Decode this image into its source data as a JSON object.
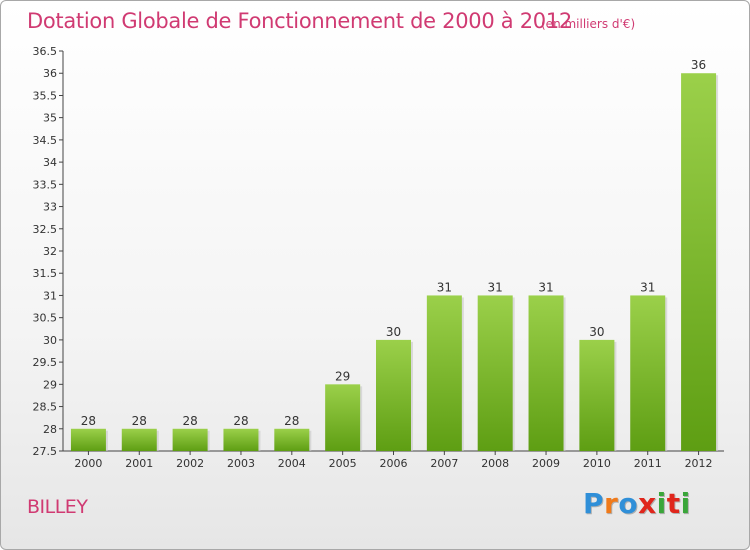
{
  "header": {
    "title": "Dotation Globale de Fonctionnement de 2000 à 2012",
    "unit": "(en milliers d'€)"
  },
  "footer": {
    "commune": "BILLEY",
    "logo_text": "Proxiti",
    "logo_colors": [
      "#2f8fd8",
      "#f07a1a",
      "#2f8fd8",
      "#e0261c",
      "#3aa63a",
      "#e0261c",
      "#3aa63a"
    ]
  },
  "colors": {
    "bar_top": "#9bd04a",
    "bar_bottom": "#5e9e13",
    "title": "#d03a72"
  },
  "chart_data": {
    "type": "bar",
    "title": "Dotation Globale de Fonctionnement de 2000 à 2012",
    "subtitle": "(en milliers d'€)",
    "xlabel": "",
    "ylabel": "",
    "categories": [
      "2000",
      "2001",
      "2002",
      "2003",
      "2004",
      "2005",
      "2006",
      "2007",
      "2008",
      "2009",
      "2010",
      "2011",
      "2012"
    ],
    "values": [
      28,
      28,
      28,
      28,
      28,
      29,
      30,
      31,
      31,
      31,
      30,
      31,
      36
    ],
    "ylim": [
      27.5,
      36.5
    ],
    "ytick_step": 0.5,
    "ytick_labels": [
      "27.5",
      "28",
      "28.5",
      "29",
      "29.5",
      "30",
      "30.5",
      "31",
      "31.5",
      "32",
      "32.5",
      "33",
      "33.5",
      "34",
      "34.5",
      "35",
      "35.5",
      "36",
      "36.5"
    ],
    "grid": false,
    "legend": "none"
  }
}
